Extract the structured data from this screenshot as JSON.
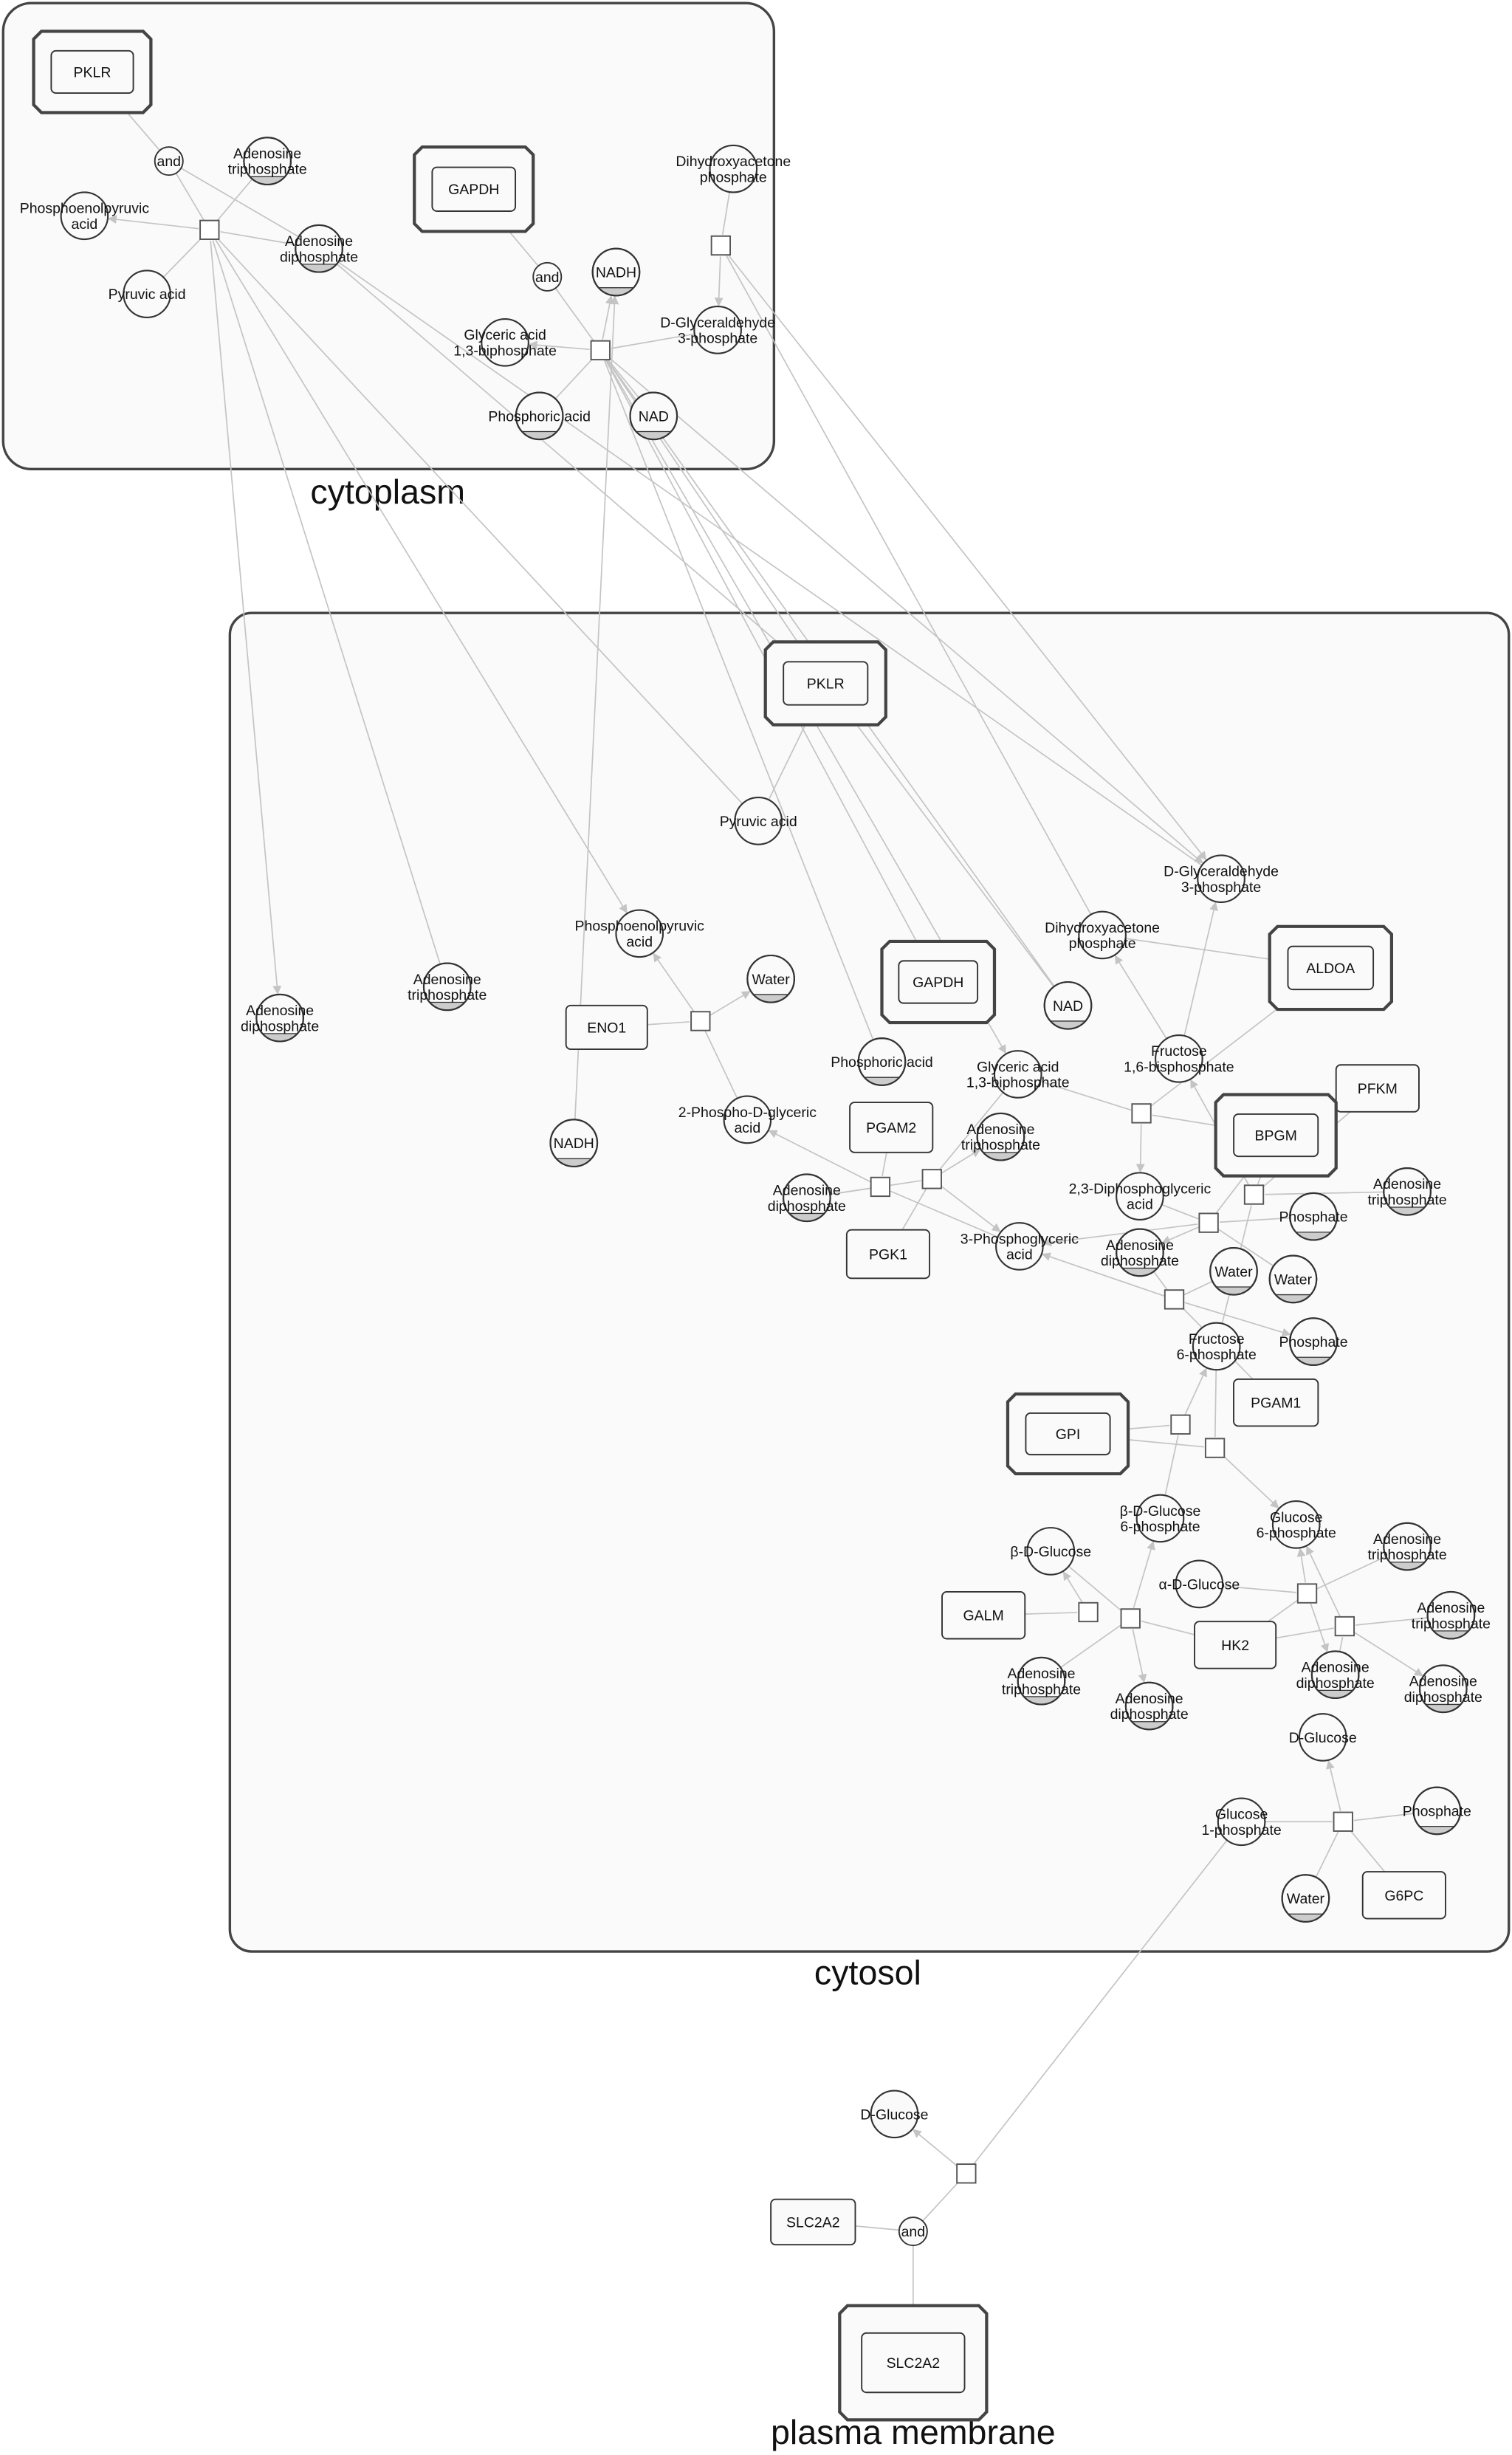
{
  "compartments": {
    "cytoplasm": "cytoplasm",
    "cytosol": "cytosol",
    "plasma_membrane": "plasma membrane"
  },
  "nodes": {
    "pklr1": {
      "label": "PKLR",
      "kind": "complex"
    },
    "and1": {
      "label": "and",
      "kind": "and"
    },
    "atp1": {
      "label": "Adenosine\ntriphosphate",
      "kind": "compound",
      "shaded": true
    },
    "pep1": {
      "label": "Phosphoenolpyruvic\nacid",
      "kind": "compound"
    },
    "r1": {
      "label": "",
      "kind": "reaction"
    },
    "adp1": {
      "label": "Adenosine\ndiphosphate",
      "kind": "compound",
      "shaded": true
    },
    "pyr1": {
      "label": "Pyruvic acid",
      "kind": "compound"
    },
    "gapdh1": {
      "label": "GAPDH",
      "kind": "complex"
    },
    "dhap1": {
      "label": "Dihydroxyacetone\nphosphate",
      "kind": "compound"
    },
    "r2": {
      "label": "",
      "kind": "reaction"
    },
    "and2": {
      "label": "and",
      "kind": "and"
    },
    "nadh1": {
      "label": "NADH",
      "kind": "compound",
      "shaded": true
    },
    "g3p1": {
      "label": "D-Glyceraldehyde\n3-phosphate",
      "kind": "compound"
    },
    "bpg1": {
      "label": "Glyceric acid\n1,3-biphosphate",
      "kind": "compound"
    },
    "r3": {
      "label": "",
      "kind": "reaction"
    },
    "pho1": {
      "label": "Phosphoric acid",
      "kind": "compound",
      "shaded": true
    },
    "nad1": {
      "label": "NAD",
      "kind": "compound",
      "shaded": true
    },
    "pklr2": {
      "label": "PKLR",
      "kind": "complex"
    },
    "pyr2": {
      "label": "Pyruvic acid",
      "kind": "compound"
    },
    "g3p2": {
      "label": "D-Glyceraldehyde\n3-phosphate",
      "kind": "compound"
    },
    "dhap2": {
      "label": "Dihydroxyacetone\nphosphate",
      "kind": "compound"
    },
    "aldoa": {
      "label": "ALDOA",
      "kind": "complex"
    },
    "pep2": {
      "label": "Phosphoenolpyruvic\nacid",
      "kind": "compound"
    },
    "adp2": {
      "label": "Adenosine\ndiphosphate",
      "kind": "compound",
      "shaded": true
    },
    "atp2": {
      "label": "Adenosine\ntriphosphate",
      "kind": "compound",
      "shaded": true
    },
    "water1": {
      "label": "Water",
      "kind": "compound",
      "shaded": true
    },
    "eno1": {
      "label": "ENO1",
      "kind": "protein"
    },
    "r_eno": {
      "label": "",
      "kind": "reaction"
    },
    "gapdh2": {
      "label": "GAPDH",
      "kind": "complex"
    },
    "nad2": {
      "label": "NAD",
      "kind": "compound",
      "shaded": true
    },
    "pho2": {
      "label": "Phosphoric acid",
      "kind": "compound",
      "shaded": true
    },
    "bpg2": {
      "label": "Glyceric acid\n1,3-biphosphate",
      "kind": "compound"
    },
    "f16bp": {
      "label": "Fructose\n1,6-bisphosphate",
      "kind": "compound"
    },
    "pfkm": {
      "label": "PFKM",
      "kind": "protein"
    },
    "pg2": {
      "label": "2-Phospho-D-glyceric\nacid",
      "kind": "compound"
    },
    "pgam2": {
      "label": "PGAM2",
      "kind": "protein"
    },
    "atp3": {
      "label": "Adenosine\ntriphosphate",
      "kind": "compound",
      "shaded": true
    },
    "r_bpg": {
      "label": "",
      "kind": "reaction"
    },
    "bpgm": {
      "label": "BPGM",
      "kind": "complex"
    },
    "nadh2": {
      "label": "NADH",
      "kind": "compound",
      "shaded": true
    },
    "adp3": {
      "label": "Adenosine\ndiphosphate",
      "kind": "compound",
      "shaded": true
    },
    "r_pgam": {
      "label": "",
      "kind": "reaction"
    },
    "r_pgk": {
      "label": "",
      "kind": "reaction"
    },
    "dpg23": {
      "label": "2,3-Diphosphoglyceric\nacid",
      "kind": "compound"
    },
    "atp4": {
      "label": "Adenosine\ntriphosphate",
      "kind": "compound",
      "shaded": true
    },
    "r_pfk": {
      "label": "",
      "kind": "reaction"
    },
    "phos1": {
      "label": "Phosphate",
      "kind": "compound",
      "shaded": true
    },
    "r_dpg": {
      "label": "",
      "kind": "reaction"
    },
    "pg3": {
      "label": "3-Phosphoglyceric\nacid",
      "kind": "compound"
    },
    "pgk1": {
      "label": "PGK1",
      "kind": "protein"
    },
    "adp4": {
      "label": "Adenosine\ndiphosphate",
      "kind": "compound",
      "shaded": true
    },
    "water2": {
      "label": "Water",
      "kind": "compound",
      "shaded": true
    },
    "water3": {
      "label": "Water",
      "kind": "compound",
      "shaded": true
    },
    "r_fbp": {
      "label": "",
      "kind": "reaction"
    },
    "f6p": {
      "label": "Fructose\n6-phosphate",
      "kind": "compound"
    },
    "phos2": {
      "label": "Phosphate",
      "kind": "compound",
      "shaded": true
    },
    "pgam1": {
      "label": "PGAM1",
      "kind": "protein"
    },
    "gpi": {
      "label": "GPI",
      "kind": "complex"
    },
    "r_gpi1": {
      "label": "",
      "kind": "reaction"
    },
    "r_gpi2": {
      "label": "",
      "kind": "reaction"
    },
    "bg6p": {
      "label": "β-D-Glucose\n6-phosphate",
      "kind": "compound"
    },
    "g6p": {
      "label": "Glucose\n6-phosphate",
      "kind": "compound"
    },
    "atp5": {
      "label": "Adenosine\ntriphosphate",
      "kind": "compound",
      "shaded": true
    },
    "bdg": {
      "label": "β-D-Glucose",
      "kind": "compound"
    },
    "adg": {
      "label": "α-D-Glucose",
      "kind": "compound"
    },
    "r_hk1": {
      "label": "",
      "kind": "reaction"
    },
    "galm": {
      "label": "GALM",
      "kind": "protein"
    },
    "r_galm": {
      "label": "",
      "kind": "reaction"
    },
    "r_hk3": {
      "label": "",
      "kind": "reaction"
    },
    "atp6": {
      "label": "Adenosine\ntriphosphate",
      "kind": "compound",
      "shaded": true
    },
    "hk2": {
      "label": "HK2",
      "kind": "protein"
    },
    "r_hk2": {
      "label": "",
      "kind": "reaction"
    },
    "atp7": {
      "label": "Adenosine\ntriphosphate",
      "kind": "compound",
      "shaded": true
    },
    "adp5": {
      "label": "Adenosine\ndiphosphate",
      "kind": "compound",
      "shaded": true
    },
    "adp6": {
      "label": "Adenosine\ndiphosphate",
      "kind": "compound",
      "shaded": true
    },
    "adp7": {
      "label": "Adenosine\ndiphosphate",
      "kind": "compound",
      "shaded": true
    },
    "dglc1": {
      "label": "D-Glucose",
      "kind": "compound"
    },
    "g1p": {
      "label": "Glucose\n1-phosphate",
      "kind": "compound"
    },
    "r_g6pc": {
      "label": "",
      "kind": "reaction"
    },
    "phos3": {
      "label": "Phosphate",
      "kind": "compound",
      "shaded": true
    },
    "water4": {
      "label": "Water",
      "kind": "compound",
      "shaded": true
    },
    "g6pc": {
      "label": "G6PC",
      "kind": "protein"
    },
    "dglc2": {
      "label": "D-Glucose",
      "kind": "compound"
    },
    "r_out": {
      "label": "",
      "kind": "reaction"
    },
    "slc2a2a": {
      "label": "SLC2A2",
      "kind": "protein"
    },
    "and3": {
      "label": "and",
      "kind": "and"
    },
    "slc2a2b": {
      "label": "SLC2A2",
      "kind": "complex"
    }
  },
  "colors": {
    "line": "#c4c4c4",
    "stroke": "#333333",
    "node_fill": "#fafafa",
    "shade": "#cccccc"
  }
}
